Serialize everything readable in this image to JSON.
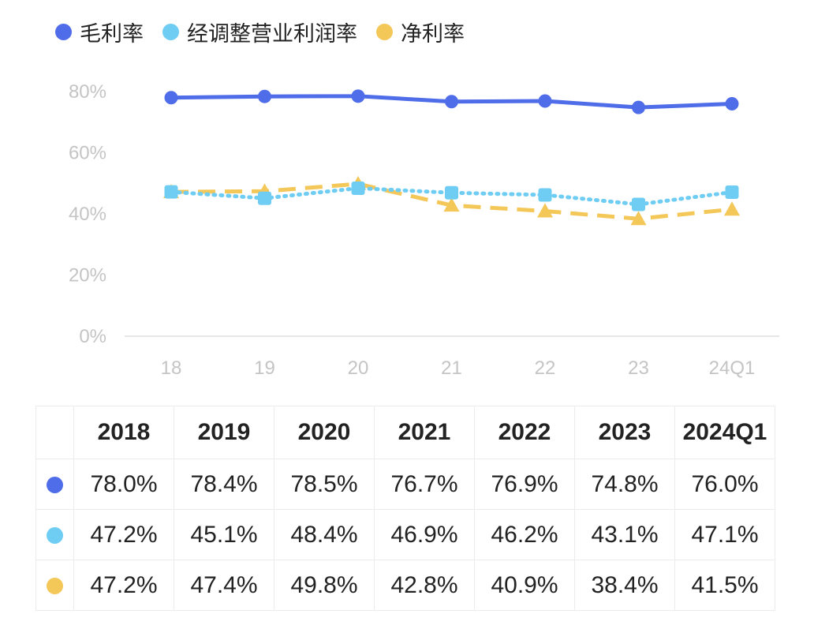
{
  "chart_data": {
    "type": "line",
    "categories": [
      "18",
      "19",
      "20",
      "21",
      "22",
      "23",
      "24Q1"
    ],
    "ylim": [
      0,
      80
    ],
    "yticks": [
      "0%",
      "20%",
      "40%",
      "60%",
      "80%"
    ],
    "ytick_values": [
      0,
      20,
      40,
      60,
      80
    ],
    "grid": false,
    "legend_position": "top-left",
    "series": [
      {
        "name": "毛利率",
        "color": "#4f6ce9",
        "style": "solid",
        "marker": "circle",
        "values": [
          78.0,
          78.4,
          78.5,
          76.7,
          76.9,
          74.8,
          76.0
        ]
      },
      {
        "name": "经调整营业利润率",
        "color": "#6fcdf3",
        "style": "dotted",
        "marker": "square",
        "values": [
          47.2,
          45.1,
          48.4,
          46.9,
          46.2,
          43.1,
          47.1
        ]
      },
      {
        "name": "净利率",
        "color": "#f4c759",
        "style": "dashed",
        "marker": "triangle",
        "values": [
          47.2,
          47.4,
          49.8,
          42.8,
          40.9,
          38.4,
          41.5
        ]
      }
    ]
  },
  "legend": [
    {
      "label": "毛利率",
      "color": "#4f6ce9"
    },
    {
      "label": "经调整营业利润率",
      "color": "#6fcdf3"
    },
    {
      "label": "净利率",
      "color": "#f4c759"
    }
  ],
  "table": {
    "headers": [
      "2018",
      "2019",
      "2020",
      "2021",
      "2022",
      "2023",
      "2024Q1"
    ],
    "rows": [
      {
        "color": "#4f6ce9",
        "cells": [
          "78.0%",
          "78.4%",
          "78.5%",
          "76.7%",
          "76.9%",
          "74.8%",
          "76.0%"
        ]
      },
      {
        "color": "#6fcdf3",
        "cells": [
          "47.2%",
          "45.1%",
          "48.4%",
          "46.9%",
          "46.2%",
          "43.1%",
          "47.1%"
        ]
      },
      {
        "color": "#f4c759",
        "cells": [
          "47.2%",
          "47.4%",
          "49.8%",
          "42.8%",
          "40.9%",
          "38.4%",
          "41.5%"
        ]
      }
    ]
  }
}
